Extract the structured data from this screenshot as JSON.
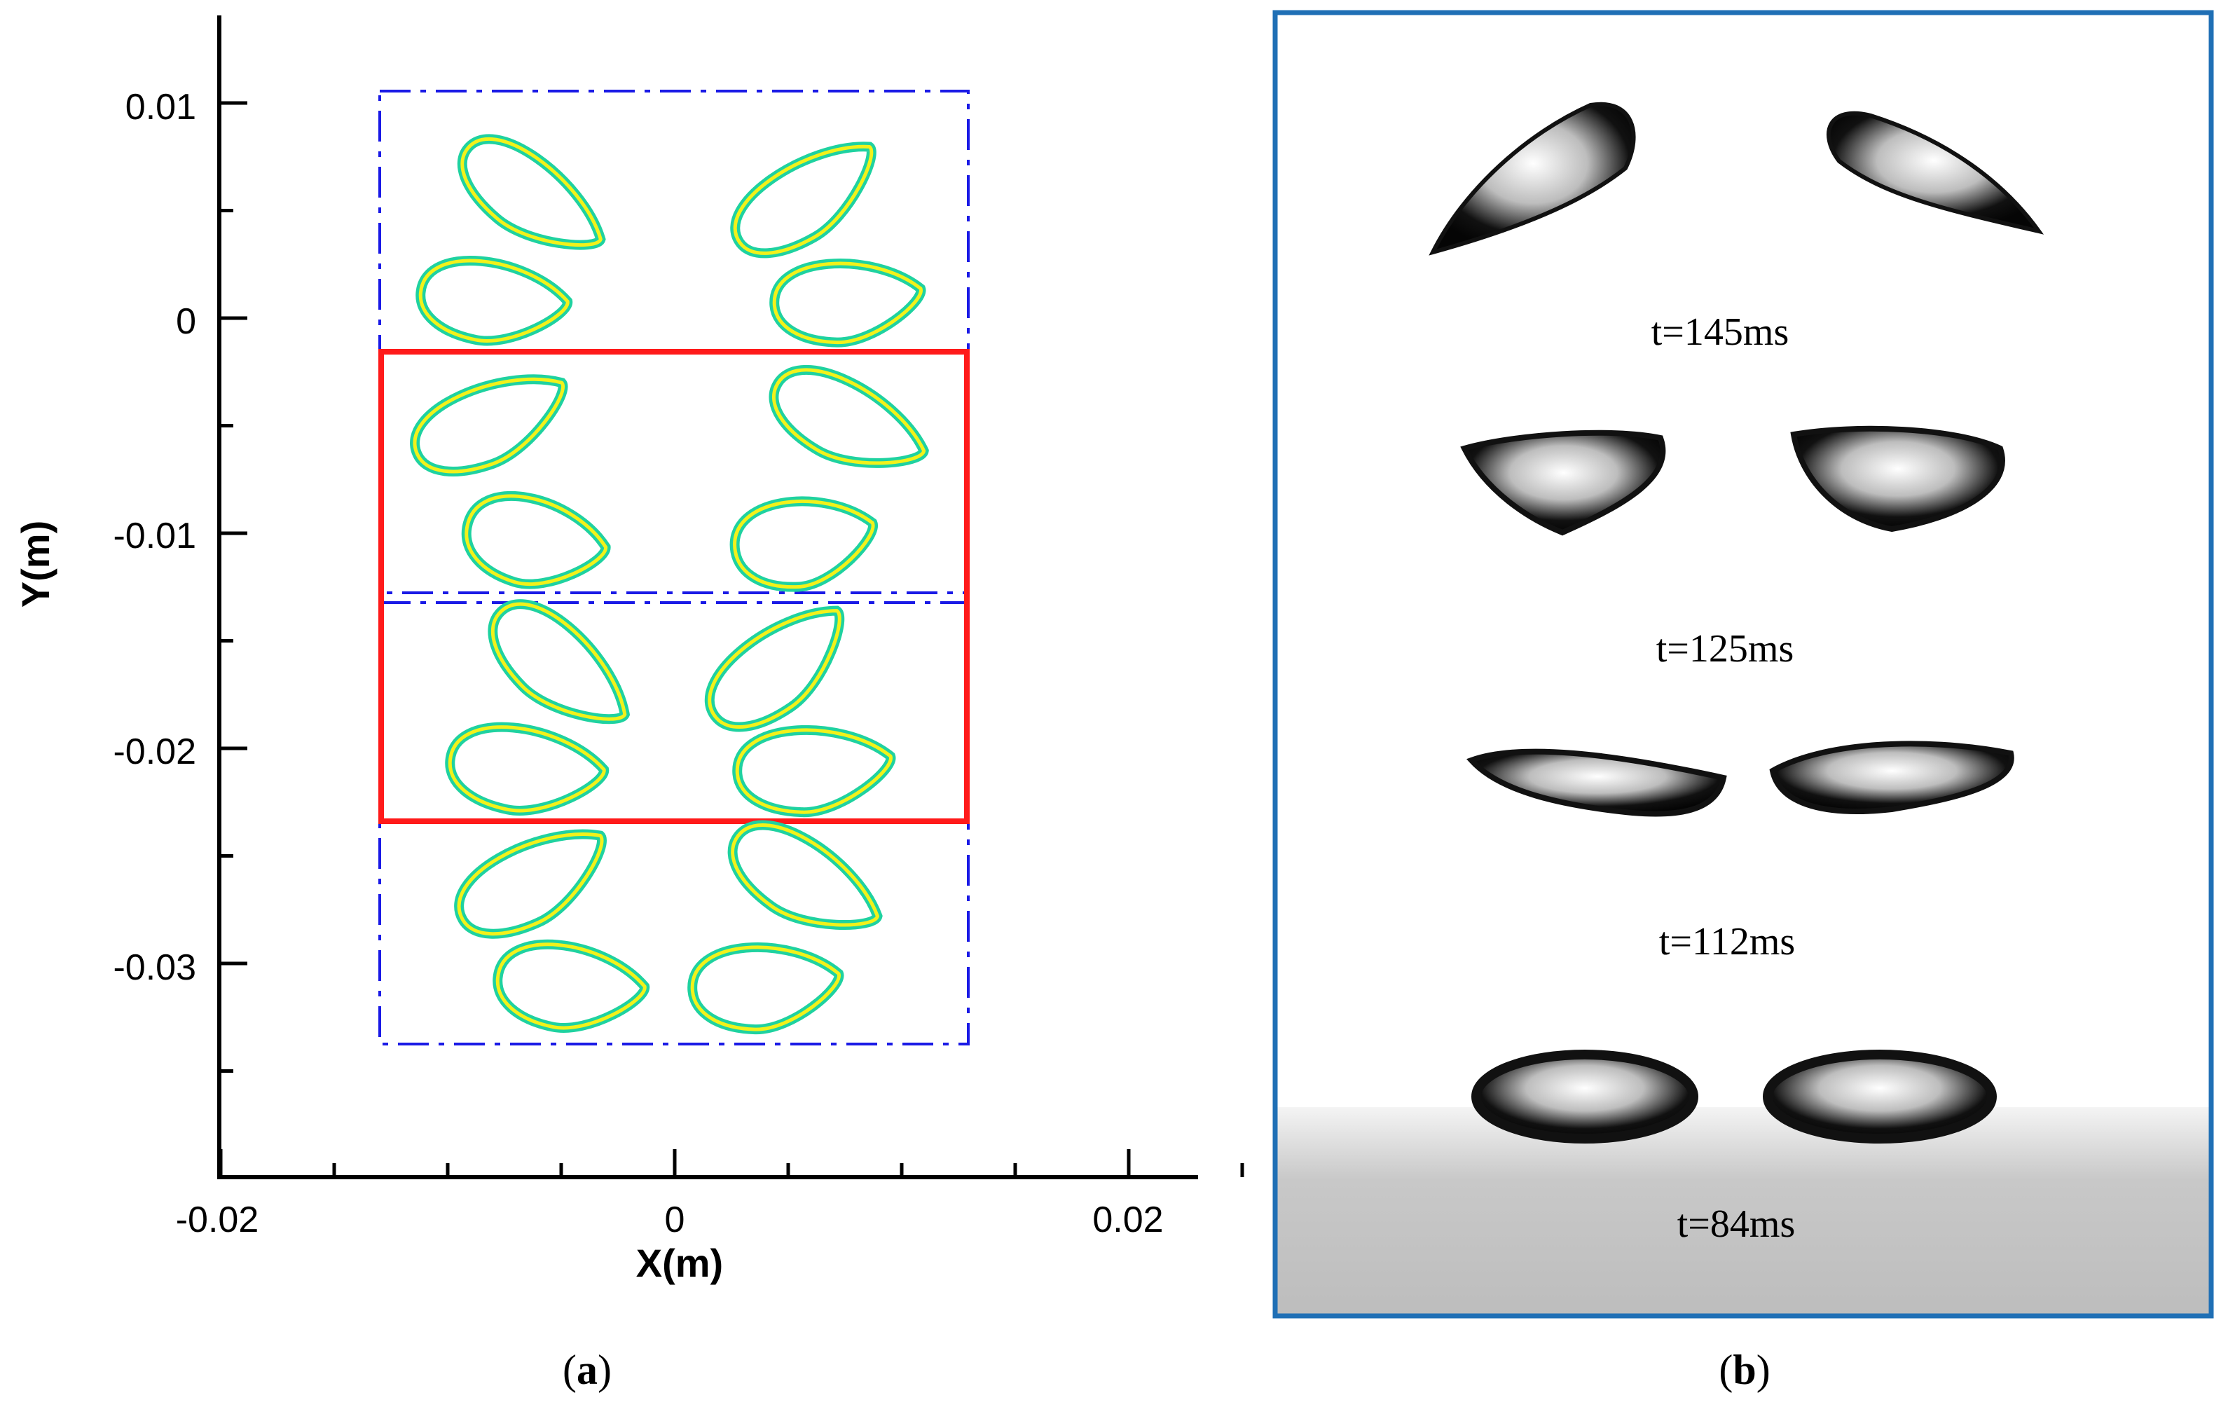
{
  "panel_a": {
    "caption_open": "(",
    "caption_letter": "a",
    "caption_close": ")",
    "x_axis_title": "X(m)",
    "y_axis_title": "Y(m)",
    "x_ticks": [
      {
        "value": -0.02,
        "label": "-0.02"
      },
      {
        "value": 0,
        "label": "0"
      },
      {
        "value": 0.02,
        "label": "0.02"
      }
    ],
    "y_ticks": [
      {
        "value": 0.01,
        "label": "0.01"
      },
      {
        "value": 0,
        "label": "0"
      },
      {
        "value": -0.01,
        "label": "-0.01"
      },
      {
        "value": -0.02,
        "label": "-0.02"
      },
      {
        "value": -0.03,
        "label": "-0.03"
      }
    ],
    "colors": {
      "bubble_outer": "#1fd2a0",
      "bubble_inner": "#f2f21a",
      "red_box": "#ff1a1a",
      "blue_dashed": "#1a1ae6"
    }
  },
  "panel_b": {
    "caption_open": "(",
    "caption_letter": "b",
    "caption_close": ")",
    "frame_color": "#1f6fb5",
    "time_labels": [
      "t=145ms",
      "t=125ms",
      "t=112ms",
      "t=84ms"
    ]
  }
}
